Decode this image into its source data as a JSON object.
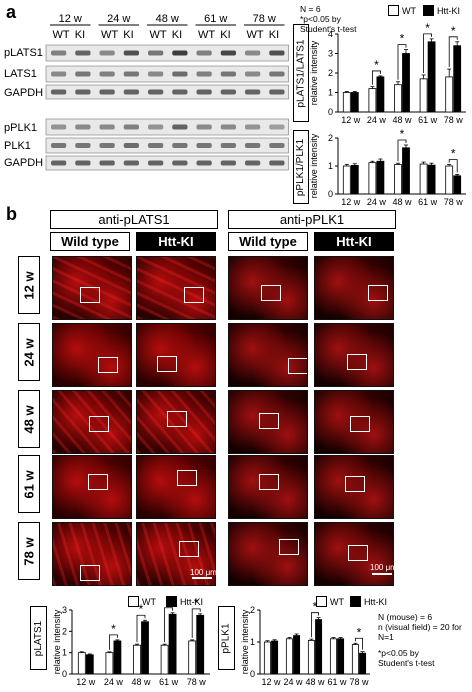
{
  "panel_a": {
    "letter": "a",
    "weeks": [
      "12 w",
      "24 w",
      "48 w",
      "61 w",
      "78 w"
    ],
    "genotype_cols": [
      "WT",
      "KI"
    ],
    "blot_rows_top": [
      "pLATS1",
      "LATS1",
      "GAPDH"
    ],
    "blot_rows_bottom": [
      "pPLK1",
      "PLK1",
      "GAPDH"
    ],
    "stats_note": [
      "N = 6",
      "*p<0.05 by",
      "Student's t-test"
    ],
    "legend": {
      "wt": "WT",
      "ki": "Htt-KI"
    }
  },
  "panel_b": {
    "letter": "b",
    "antibody_headers": [
      "anti-pLATS1",
      "anti-pPLK1"
    ],
    "genotype_headers": [
      "Wild type",
      "Htt-KI",
      "Wild type",
      "Htt-KI"
    ],
    "row_weeks": [
      "12 w",
      "24 w",
      "48 w",
      "61 w",
      "78 w"
    ],
    "scale_left": "100 μm",
    "scale_right": "100 μm",
    "legend": {
      "wt": "WT",
      "ki": "Htt-KI"
    },
    "stats_note": [
      "N (mouse) = 6",
      "n (visual field) = 20 for N=1",
      "*p<0.05 by",
      "Student's t-test"
    ]
  },
  "chart_data": [
    {
      "type": "bar",
      "id": "a-top",
      "box_label": "pLATS1/LATS1",
      "ylabel": "relative intensity",
      "categories": [
        "12 w",
        "24 w",
        "48 w",
        "61 w",
        "78 w"
      ],
      "series": [
        {
          "name": "WT",
          "values": [
            1.0,
            1.2,
            1.4,
            1.7,
            1.8
          ]
        },
        {
          "name": "Htt-KI",
          "values": [
            1.0,
            1.8,
            3.0,
            3.6,
            3.4
          ]
        }
      ],
      "errors": [
        [
          0.05,
          0.1,
          0.15,
          0.2,
          0.4
        ],
        [
          0.05,
          0.05,
          0.2,
          0.15,
          0.2
        ]
      ],
      "ylim": [
        0,
        4
      ],
      "ticks": [
        0,
        1,
        2,
        3,
        4
      ],
      "significant": [
        false,
        true,
        true,
        true,
        true
      ]
    },
    {
      "type": "bar",
      "id": "a-bottom",
      "box_label": "pPLK1/PLK1",
      "ylabel": "relative intensity",
      "categories": [
        "12 w",
        "24 w",
        "48 w",
        "61 w",
        "78 w"
      ],
      "series": [
        {
          "name": "WT",
          "values": [
            1.0,
            1.12,
            1.05,
            1.07,
            1.0
          ]
        },
        {
          "name": "Htt-KI",
          "values": [
            1.02,
            1.17,
            1.65,
            1.03,
            0.65
          ]
        }
      ],
      "errors": [
        [
          0.06,
          0.05,
          0.05,
          0.07,
          0.05
        ],
        [
          0.06,
          0.08,
          0.1,
          0.07,
          0.05
        ]
      ],
      "ylim": [
        0,
        2
      ],
      "ticks": [
        0,
        1,
        2
      ],
      "significant": [
        false,
        false,
        true,
        false,
        true
      ]
    },
    {
      "type": "bar",
      "id": "b-left",
      "box_label": "pLATS1",
      "ylabel": "relative intensity",
      "categories": [
        "12 w",
        "24 w",
        "48 w",
        "61 w",
        "78 w"
      ],
      "series": [
        {
          "name": "WT",
          "values": [
            1.0,
            1.0,
            1.35,
            1.35,
            1.55
          ]
        },
        {
          "name": "Htt-KI",
          "values": [
            0.9,
            1.55,
            2.45,
            2.8,
            2.75
          ]
        }
      ],
      "errors": [
        [
          0.04,
          0.04,
          0.05,
          0.05,
          0.05
        ],
        [
          0.04,
          0.05,
          0.07,
          0.07,
          0.07
        ]
      ],
      "ylim": [
        0,
        3
      ],
      "ticks": [
        0,
        1,
        2,
        3
      ],
      "significant": [
        false,
        true,
        true,
        true,
        true
      ]
    },
    {
      "type": "bar",
      "id": "b-right",
      "box_label": "pPLK1",
      "ylabel": "relative intensity",
      "categories": [
        "12 w",
        "24 w",
        "48 w",
        "61 w",
        "78 w"
      ],
      "series": [
        {
          "name": "WT",
          "values": [
            1.0,
            1.1,
            1.05,
            1.1,
            0.92
          ]
        },
        {
          "name": "Htt-KI",
          "values": [
            1.03,
            1.2,
            1.7,
            1.1,
            0.65
          ]
        }
      ],
      "errors": [
        [
          0.04,
          0.04,
          0.04,
          0.04,
          0.04
        ],
        [
          0.04,
          0.05,
          0.06,
          0.04,
          0.05
        ]
      ],
      "ylim": [
        0,
        2
      ],
      "ticks": [
        0,
        1,
        2
      ],
      "significant": [
        false,
        false,
        true,
        false,
        true
      ]
    }
  ]
}
